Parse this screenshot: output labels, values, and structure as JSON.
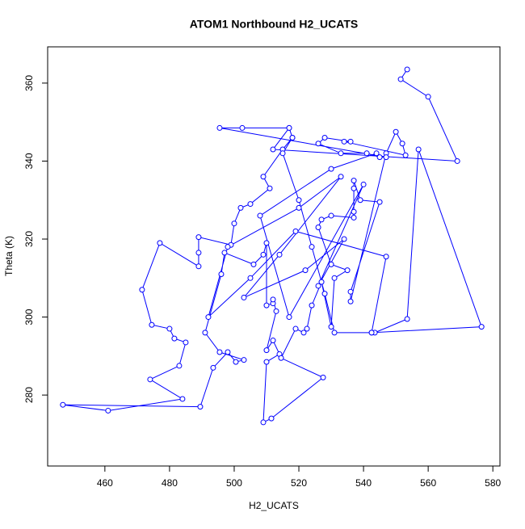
{
  "chart_data": {
    "type": "line",
    "title": "ATOM1 Northbound H2_UCATS",
    "x_label": "H2_UCATS",
    "y_label": "Theta (K)",
    "xlim": [
      442.3,
      582.2
    ],
    "ylim": [
      261.8,
      369.3
    ],
    "xticks": [
      460,
      480,
      500,
      520,
      540,
      560,
      580
    ],
    "yticks": [
      280,
      300,
      320,
      340,
      360
    ],
    "series": [
      {
        "color": "#0000ff",
        "x": [
          553.5,
          551.5,
          560,
          569,
          512,
          517,
          518,
          515,
          509,
          511,
          505,
          502,
          500,
          499,
          489,
          489,
          489,
          477,
          471.5,
          474.5,
          480,
          481.5,
          485,
          483,
          474,
          484,
          461,
          447,
          489.5,
          493.5,
          498,
          500.5,
          503,
          495.5,
          491,
          496,
          497,
          506,
          509,
          510,
          510,
          512,
          512,
          513,
          510,
          512,
          514,
          510,
          509,
          511.5,
          527.5,
          514.5,
          519,
          521.5,
          522.5,
          524,
          527,
          530,
          531,
          535,
          530,
          526,
          527,
          530,
          537,
          537,
          537,
          537,
          539,
          545,
          536,
          536,
          547,
          550,
          552,
          553,
          534,
          536,
          528,
          526,
          533,
          541,
          545,
          547,
          495.5,
          502.5,
          517,
          518,
          515,
          520,
          524,
          528,
          531,
          542.5,
          543.5,
          553.5,
          557,
          576.5,
          542.5,
          547,
          519,
          505,
          492,
          498,
          520,
          533,
          514,
          503,
          522,
          534,
          526,
          540,
          517,
          508,
          530,
          544
        ],
        "y": [
          363.5,
          361,
          356.5,
          340,
          343,
          348.5,
          346,
          343,
          336,
          333,
          329,
          328,
          324,
          318.5,
          320.5,
          316.5,
          313,
          319,
          307,
          298,
          297,
          294.5,
          293.5,
          287.5,
          284,
          279,
          276,
          277.5,
          277,
          287,
          291,
          288.5,
          289,
          291,
          296,
          311,
          316.5,
          313.5,
          316,
          319,
          303,
          303.5,
          304.5,
          301.5,
          291.5,
          294,
          290.5,
          288.5,
          273,
          274,
          284.5,
          289.5,
          297,
          296,
          297,
          303,
          309,
          297.5,
          310,
          312,
          313.5,
          323,
          325,
          326,
          325.5,
          327,
          333,
          335,
          330,
          329.5,
          306.5,
          304,
          342,
          347.5,
          344.5,
          341.5,
          345,
          345,
          346,
          344.5,
          342,
          342,
          341,
          341,
          348.5,
          348.5,
          348.5,
          346,
          342,
          330,
          318,
          306,
          296,
          296,
          296,
          299.5,
          343,
          297.5,
          296,
          315.5,
          322,
          310,
          300,
          318,
          328,
          336,
          316,
          305,
          312,
          320,
          308,
          334,
          300,
          326,
          338,
          342
        ]
      }
    ]
  }
}
